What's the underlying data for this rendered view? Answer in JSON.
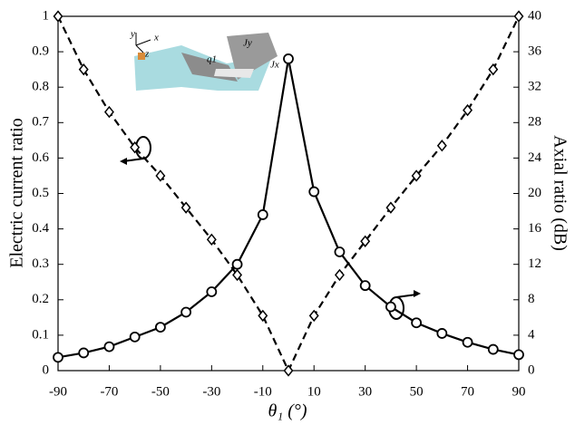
{
  "chart_data": {
    "type": "line",
    "xlabel": "θ₁ (°)",
    "ylabel": "Electric current ratio",
    "y2label": "Axial ratio (dB)",
    "x": [
      -90,
      -80,
      -70,
      -60,
      -50,
      -40,
      -30,
      -20,
      -10,
      0,
      10,
      20,
      30,
      40,
      50,
      60,
      70,
      80,
      90
    ],
    "series": [
      {
        "color": "#000000",
        "line_style": "dashed",
        "marker": "diamond",
        "axis": "y",
        "values": [
          1.0,
          0.85,
          0.73,
          0.63,
          0.55,
          0.46,
          0.37,
          0.27,
          0.155,
          0.0,
          0.155,
          0.27,
          0.365,
          0.46,
          0.55,
          0.635,
          0.735,
          0.85,
          1.0
        ]
      },
      {
        "color": "#000000",
        "line_style": "solid",
        "marker": "circle",
        "axis": "y2",
        "values": [
          1.5,
          2.0,
          2.7,
          3.8,
          4.9,
          6.6,
          8.9,
          12.0,
          17.6,
          35.2,
          20.2,
          13.4,
          9.6,
          7.2,
          5.4,
          4.2,
          3.2,
          2.4,
          1.8
        ]
      }
    ],
    "xlim": [
      -90,
      90
    ],
    "xticks": [
      -90,
      -70,
      -50,
      -30,
      -10,
      10,
      30,
      50,
      70,
      90
    ],
    "ylim": [
      0,
      1
    ],
    "yticks": [
      0,
      0.1,
      0.2,
      0.3,
      0.4,
      0.5,
      0.6,
      0.7,
      0.8,
      0.9,
      1
    ],
    "y2lim": [
      0,
      40
    ],
    "y2ticks": [
      0,
      4,
      8,
      12,
      16,
      20,
      24,
      28,
      32,
      36,
      40
    ],
    "grid": false,
    "inset_labels": [
      "y",
      "x",
      "z",
      "q1",
      "Jy",
      "Jx"
    ]
  }
}
